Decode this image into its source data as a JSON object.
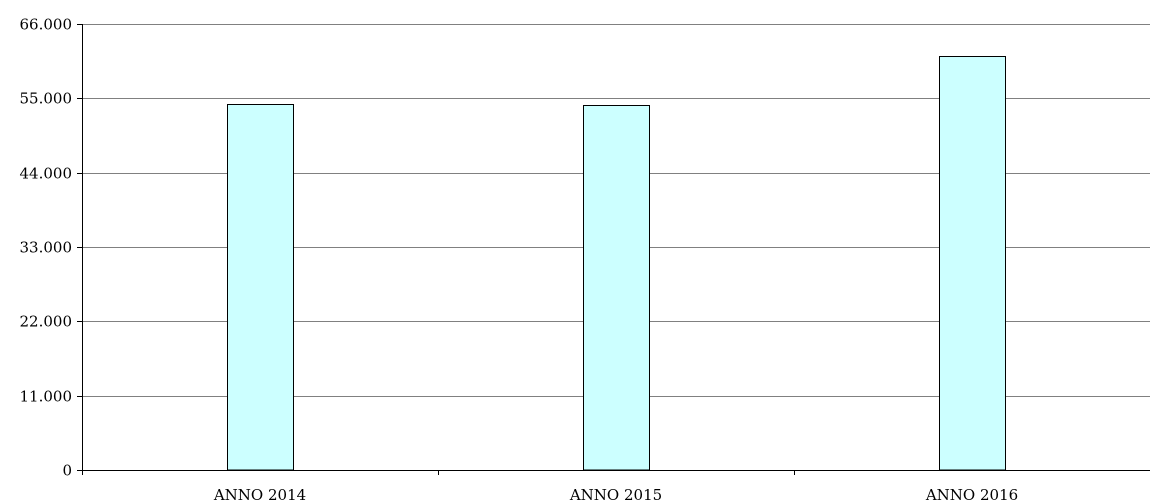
{
  "chart_data": {
    "type": "bar",
    "categories": [
      "ANNO 2014",
      "ANNO 2015",
      "ANNO 2016"
    ],
    "values": [
      54200,
      54000,
      61300
    ],
    "ylim": [
      0,
      66000
    ],
    "yticks": [
      0,
      11000,
      22000,
      33000,
      44000,
      55000,
      66000
    ],
    "ytick_labels": [
      "0",
      "11.000",
      "22.000",
      "33.000",
      "44.000",
      "55.000",
      "66.000"
    ],
    "grid": true,
    "title": "",
    "xlabel": "",
    "ylabel": "",
    "colors": {
      "bar_fill": "#ccffff",
      "bar_stroke": "#000000",
      "grid": "#808080"
    }
  }
}
